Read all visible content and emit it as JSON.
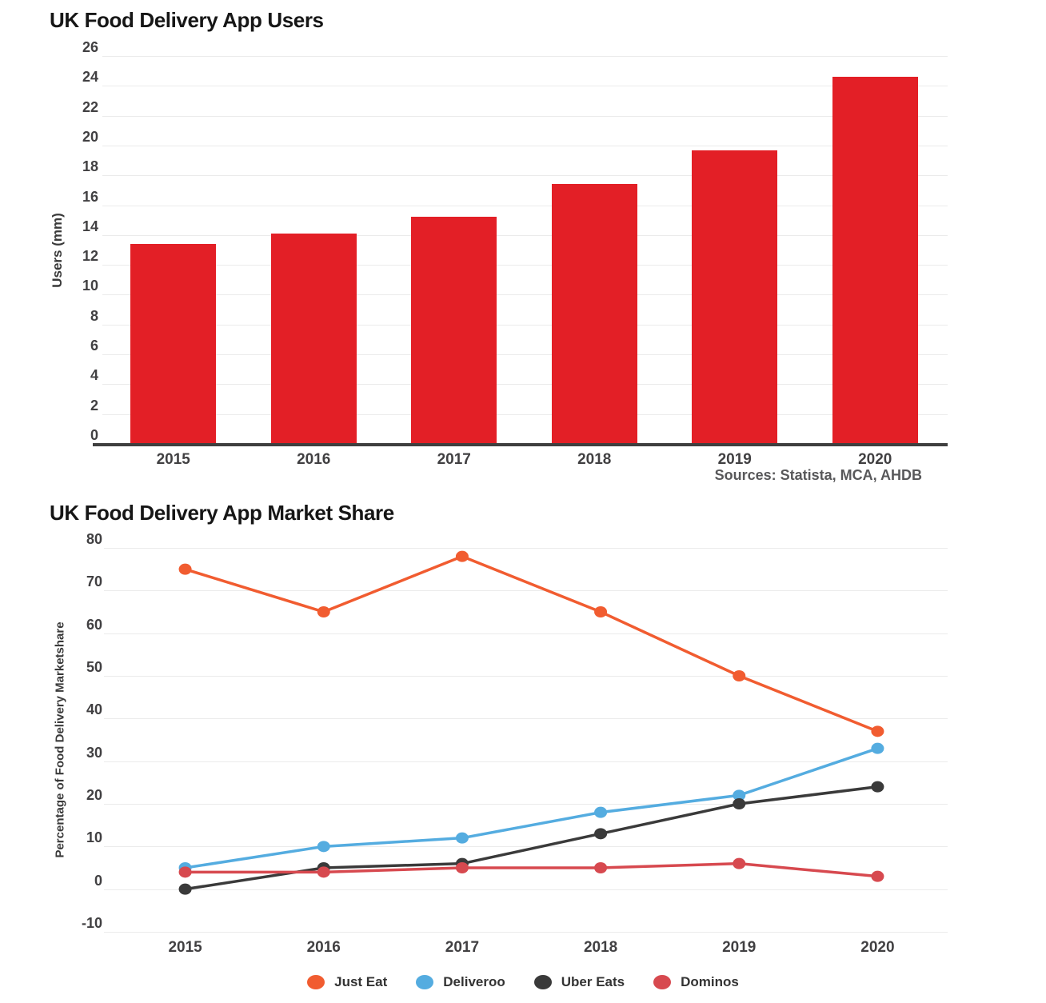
{
  "chart_data": [
    {
      "type": "bar",
      "title": "UK Food Delivery App Users",
      "ylabel": "Users (mm)",
      "categories": [
        "2015",
        "2016",
        "2017",
        "2018",
        "2019",
        "2020"
      ],
      "values": [
        13.4,
        14.1,
        15.2,
        17.4,
        19.7,
        24.6
      ],
      "ylim": [
        0,
        26
      ],
      "ytick_step": 2,
      "grid": true,
      "bar_color": "#e31f26",
      "axis_color": "#3f3f3f",
      "source_note": "Sources: Statista, MCA, AHDB"
    },
    {
      "type": "line",
      "title": "UK Food Delivery App Market Share",
      "ylabel": "Percentage of Food Delivery Marketshare",
      "categories": [
        "2015",
        "2016",
        "2017",
        "2018",
        "2019",
        "2020"
      ],
      "ylim": [
        -10,
        80
      ],
      "ytick_step": 10,
      "grid": true,
      "legend_position": "bottom",
      "series": [
        {
          "name": "Just Eat",
          "color": "#f15c30",
          "values": [
            75,
            65,
            78,
            65,
            50,
            37
          ]
        },
        {
          "name": "Deliveroo",
          "color": "#54ace0",
          "values": [
            5,
            10,
            12,
            18,
            22,
            33
          ]
        },
        {
          "name": "Uber Eats",
          "color": "#3a3a3a",
          "values": [
            0,
            5,
            6,
            13,
            20,
            24
          ]
        },
        {
          "name": "Dominos",
          "color": "#d7494f",
          "values": [
            4,
            4,
            5,
            5,
            6,
            3
          ]
        }
      ]
    }
  ]
}
